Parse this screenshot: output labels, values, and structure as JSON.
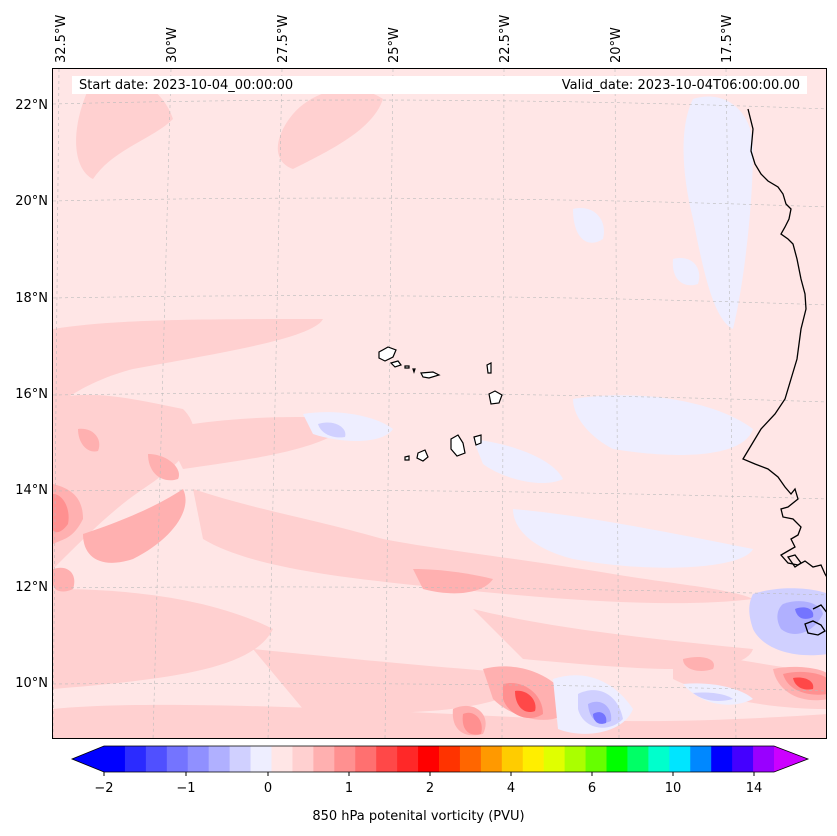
{
  "map": {
    "start_date": "Start date: 2023-10-04_00:00:00",
    "valid_date": "Valid_date: 2023-10-04T06:00:00.00",
    "lon_labels": [
      "32.5°W",
      "30°W",
      "27.5°W",
      "25°W",
      "22.5°W",
      "20°W",
      "17.5°W"
    ],
    "lat_labels": [
      "22°N",
      "20°N",
      "18°N",
      "16°N",
      "14°N",
      "12°N",
      "10°N"
    ]
  },
  "colorbar": {
    "title": "850 hPa potenital vorticity (PVU)",
    "tick_labels": [
      "−2",
      "−1",
      "0",
      "1",
      "2",
      "4",
      "6",
      "10",
      "14"
    ],
    "colors": [
      "#0000ff",
      "#2b2bff",
      "#5050ff",
      "#7474ff",
      "#9090ff",
      "#b0b0ff",
      "#d0d0ff",
      "#eeeeff",
      "#ffe6e6",
      "#ffd0d0",
      "#ffb0b0",
      "#ff9090",
      "#ff7070",
      "#ff4848",
      "#ff2828",
      "#ff0000",
      "#ff3300",
      "#ff6600",
      "#ff9900",
      "#ffcc00",
      "#ffee00",
      "#e0ff00",
      "#aaff00",
      "#66ff00",
      "#00ff00",
      "#00ff66",
      "#00ffcc",
      "#00e5ff",
      "#0088ff",
      "#0000ff",
      "#4400ff",
      "#9900ff"
    ],
    "end_low": "#0000ff",
    "end_high": "#cc00ff"
  },
  "colors": {
    "background": "#ffe6e6",
    "light_red": "#ffd0d0",
    "mid_red": "#ffb0b0",
    "strong_red": "#ff9090",
    "deep_red": "#ff4848",
    "light_blue": "#eeeeff",
    "mid_blue": "#d0d0ff",
    "blue": "#b0b0ff",
    "dark_blue": "#7474ff",
    "coast": "#000000",
    "grid": "#bbbbbb"
  }
}
